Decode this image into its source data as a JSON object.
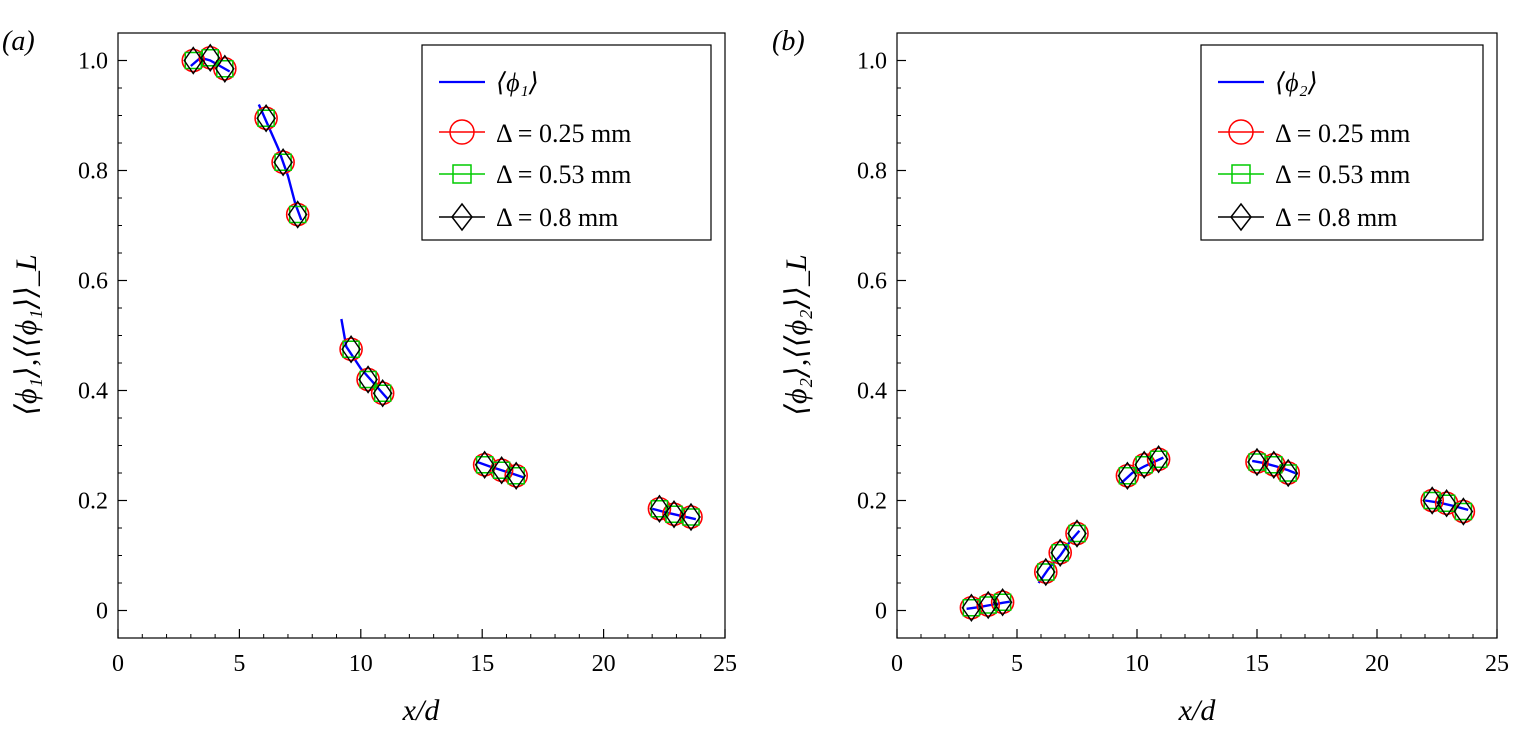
{
  "panels": [
    {
      "label": "(a)",
      "xlabel": "x/d",
      "ylabel": "⟨ϕ₁⟩,⟨⟨ϕ₁⟩⟩_L",
      "legend": {
        "line": "⟨ϕ₁⟩",
        "markers": [
          "Δ = 0.25 mm",
          "Δ = 0.53 mm",
          "Δ = 0.8 mm"
        ]
      }
    },
    {
      "label": "(b)",
      "xlabel": "x/d",
      "ylabel": "⟨ϕ₂⟩,⟨⟨ϕ₂⟩⟩_L",
      "legend": {
        "line": "⟨ϕ₂⟩",
        "markers": [
          "Δ = 0.25 mm",
          "Δ = 0.53 mm",
          "Δ = 0.8 mm"
        ]
      }
    }
  ],
  "chart_data": [
    {
      "type": "scatter",
      "panel": "(a)",
      "xlabel": "x/d",
      "ylabel": "⟨ϕ₁⟩,⟨⟨ϕ₁⟩⟩_L",
      "xlim": [
        0,
        25
      ],
      "ylim": [
        -0.05,
        1.05
      ],
      "xticks": [
        0,
        5,
        10,
        15,
        20,
        25
      ],
      "yticks": [
        0,
        0.2,
        0.4,
        0.6,
        0.8,
        1.0
      ],
      "ytick_labels": [
        "0",
        "0.2",
        "0.4",
        "0.6",
        "0.8",
        "1.0"
      ],
      "grid": false,
      "legend_position": "top-right",
      "line_color": "#0000ff",
      "lines": [
        {
          "name": "⟨ϕ₁⟩",
          "segment": 1,
          "x": [
            3.0,
            3.4,
            3.8,
            4.2,
            4.6
          ],
          "y": [
            0.99,
            1.005,
            1.0,
            0.99,
            0.98
          ]
        },
        {
          "name": "⟨ϕ₁⟩",
          "segment": 2,
          "x": [
            5.8,
            6.2,
            6.6,
            7.0,
            7.3,
            7.55
          ],
          "y": [
            0.92,
            0.88,
            0.84,
            0.79,
            0.74,
            0.71
          ]
        },
        {
          "name": "⟨ϕ₁⟩",
          "segment": 3,
          "x": [
            9.2,
            9.4,
            9.7,
            10.0,
            10.4,
            10.8,
            11.1
          ],
          "y": [
            0.53,
            0.48,
            0.46,
            0.44,
            0.42,
            0.4,
            0.385
          ]
        },
        {
          "name": "⟨ϕ₁⟩",
          "segment": 4,
          "x": [
            14.8,
            15.3,
            15.8,
            16.3,
            16.7
          ],
          "y": [
            0.27,
            0.262,
            0.255,
            0.248,
            0.242
          ]
        },
        {
          "name": "⟨ϕ₁⟩",
          "segment": 5,
          "x": [
            22.0,
            22.6,
            23.2,
            23.8
          ],
          "y": [
            0.185,
            0.178,
            0.172,
            0.166
          ]
        }
      ],
      "series": [
        {
          "name": "Δ = 0.25 mm",
          "marker": "circle",
          "color": "#ff0000",
          "x": [
            3.1,
            3.8,
            4.4,
            6.1,
            6.8,
            7.4,
            9.6,
            10.3,
            10.9,
            15.1,
            15.8,
            16.4,
            22.3,
            22.9,
            23.6
          ],
          "y": [
            1.0,
            1.005,
            0.985,
            0.895,
            0.815,
            0.72,
            0.475,
            0.42,
            0.395,
            0.265,
            0.255,
            0.245,
            0.185,
            0.175,
            0.17
          ]
        },
        {
          "name": "Δ = 0.53 mm",
          "marker": "square",
          "color": "#00cc00",
          "x": [
            3.1,
            3.8,
            4.4,
            6.1,
            6.8,
            7.4,
            9.6,
            10.3,
            10.9,
            15.1,
            15.8,
            16.4,
            22.3,
            22.9,
            23.6
          ],
          "y": [
            1.0,
            1.005,
            0.985,
            0.895,
            0.815,
            0.72,
            0.475,
            0.42,
            0.395,
            0.265,
            0.255,
            0.245,
            0.185,
            0.175,
            0.17
          ]
        },
        {
          "name": "Δ = 0.8 mm",
          "marker": "diamond",
          "color": "#000000",
          "x": [
            3.1,
            3.8,
            4.4,
            6.1,
            6.8,
            7.4,
            9.6,
            10.3,
            10.9,
            15.1,
            15.8,
            16.4,
            22.3,
            22.9,
            23.6
          ],
          "y": [
            1.0,
            1.005,
            0.985,
            0.895,
            0.815,
            0.72,
            0.475,
            0.42,
            0.395,
            0.265,
            0.255,
            0.245,
            0.185,
            0.175,
            0.17
          ]
        }
      ]
    },
    {
      "type": "scatter",
      "panel": "(b)",
      "xlabel": "x/d",
      "ylabel": "⟨ϕ₂⟩,⟨⟨ϕ₂⟩⟩_L",
      "xlim": [
        0,
        25
      ],
      "ylim": [
        -0.05,
        1.05
      ],
      "xticks": [
        0,
        5,
        10,
        15,
        20,
        25
      ],
      "yticks": [
        0,
        0.2,
        0.4,
        0.6,
        0.8,
        1.0
      ],
      "ytick_labels": [
        "0",
        "0.2",
        "0.4",
        "0.6",
        "0.8",
        "1.0"
      ],
      "grid": false,
      "legend_position": "top-right",
      "line_color": "#0000ff",
      "lines": [
        {
          "name": "⟨ϕ₂⟩",
          "segment": 1,
          "x": [
            2.9,
            3.4,
            3.9,
            4.4,
            4.7
          ],
          "y": [
            0.003,
            0.006,
            0.01,
            0.014,
            0.016
          ]
        },
        {
          "name": "⟨ϕ₂⟩",
          "segment": 2,
          "x": [
            5.9,
            6.3,
            6.8,
            7.2,
            7.6
          ],
          "y": [
            0.05,
            0.075,
            0.1,
            0.125,
            0.145
          ]
        },
        {
          "name": "⟨ϕ₂⟩",
          "segment": 3,
          "x": [
            9.3,
            9.8,
            10.3,
            10.8,
            11.1
          ],
          "y": [
            0.23,
            0.25,
            0.262,
            0.272,
            0.278
          ]
        },
        {
          "name": "⟨ϕ₂⟩",
          "segment": 4,
          "x": [
            14.8,
            15.3,
            15.8,
            16.3,
            16.7
          ],
          "y": [
            0.272,
            0.268,
            0.262,
            0.255,
            0.248
          ]
        },
        {
          "name": "⟨ϕ₂⟩",
          "segment": 5,
          "x": [
            22.0,
            22.6,
            23.2,
            23.8
          ],
          "y": [
            0.2,
            0.196,
            0.19,
            0.183
          ]
        }
      ],
      "series": [
        {
          "name": "Δ = 0.25 mm",
          "marker": "circle",
          "color": "#ff0000",
          "x": [
            3.1,
            3.8,
            4.4,
            6.2,
            6.8,
            7.5,
            9.6,
            10.3,
            10.9,
            15.0,
            15.7,
            16.3,
            22.3,
            22.9,
            23.6
          ],
          "y": [
            0.005,
            0.01,
            0.015,
            0.07,
            0.105,
            0.14,
            0.245,
            0.265,
            0.275,
            0.27,
            0.265,
            0.25,
            0.2,
            0.195,
            0.18
          ]
        },
        {
          "name": "Δ = 0.53 mm",
          "marker": "square",
          "color": "#00cc00",
          "x": [
            3.1,
            3.8,
            4.4,
            6.2,
            6.8,
            7.5,
            9.6,
            10.3,
            10.9,
            15.0,
            15.7,
            16.3,
            22.3,
            22.9,
            23.6
          ],
          "y": [
            0.005,
            0.01,
            0.015,
            0.07,
            0.105,
            0.14,
            0.245,
            0.265,
            0.275,
            0.27,
            0.265,
            0.25,
            0.2,
            0.195,
            0.18
          ]
        },
        {
          "name": "Δ = 0.8 mm",
          "marker": "diamond",
          "color": "#000000",
          "x": [
            3.1,
            3.8,
            4.4,
            6.2,
            6.8,
            7.5,
            9.6,
            10.3,
            10.9,
            15.0,
            15.7,
            16.3,
            22.3,
            22.9,
            23.6
          ],
          "y": [
            0.005,
            0.01,
            0.015,
            0.07,
            0.105,
            0.14,
            0.245,
            0.265,
            0.275,
            0.27,
            0.265,
            0.25,
            0.2,
            0.195,
            0.18
          ]
        }
      ]
    }
  ]
}
